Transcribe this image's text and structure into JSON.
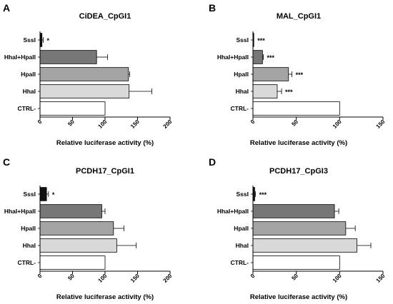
{
  "figure": {
    "panels": [
      {
        "letter": "A",
        "title": "CiDEA_CpGI1",
        "xlabel": "Relative luciferase activity (%)"
      },
      {
        "letter": "B",
        "title": "MAL_CpGI1",
        "xlabel": "Relative luciferase activity (%)"
      },
      {
        "letter": "C",
        "title": "PCDH17_CpGI1",
        "xlabel": "Relative luciferase activity (%)"
      },
      {
        "letter": "D",
        "title": "PCDH17_CpGI3",
        "xlabel": "Relative luciferase activity (%)"
      }
    ]
  },
  "chart_data": [
    {
      "type": "bar",
      "orientation": "horizontal",
      "panel": "A",
      "title": "CiDEA_CpGI1",
      "xlabel": "Relative luciferase activity (%)",
      "xlim": [
        0,
        200
      ],
      "xticks": [
        0,
        50,
        100,
        150,
        200
      ],
      "categories": [
        "SssI",
        "HhaI+HpaII",
        "HpaII",
        "HhaI",
        "CTRL-"
      ],
      "values": [
        3,
        87,
        136,
        137,
        100
      ],
      "errors": [
        2,
        17,
        2,
        35,
        0
      ],
      "significance": [
        "*",
        "",
        "",
        "",
        ""
      ],
      "bar_colors": [
        "#111111",
        "#777777",
        "#a4a4a4",
        "#d9d9d9",
        "#ffffff"
      ]
    },
    {
      "type": "bar",
      "orientation": "horizontal",
      "panel": "B",
      "title": "MAL_CpGI1",
      "xlabel": "Relative luciferase activity (%)",
      "xlim": [
        0,
        150
      ],
      "xticks": [
        0,
        50,
        100,
        150
      ],
      "categories": [
        "SssI",
        "HhaI+HpaII",
        "HpaII",
        "HhaI",
        "CTRL-"
      ],
      "values": [
        1,
        11,
        41,
        28,
        100
      ],
      "errors": [
        0,
        1,
        4,
        5,
        0
      ],
      "significance": [
        "***",
        "***",
        "***",
        "***",
        ""
      ],
      "bar_colors": [
        "#111111",
        "#777777",
        "#a4a4a4",
        "#d9d9d9",
        "#ffffff"
      ]
    },
    {
      "type": "bar",
      "orientation": "horizontal",
      "panel": "C",
      "title": "PCDH17_CpGI1",
      "xlabel": "Relative luciferase activity (%)",
      "xlim": [
        0,
        200
      ],
      "xticks": [
        0,
        50,
        100,
        150,
        200
      ],
      "categories": [
        "SssI",
        "HhaI+HpaII",
        "HpaII",
        "HhaI",
        "CTRL-"
      ],
      "values": [
        10,
        95,
        113,
        118,
        100
      ],
      "errors": [
        3,
        5,
        16,
        30,
        0
      ],
      "significance": [
        "*",
        "",
        "",
        "",
        ""
      ],
      "bar_colors": [
        "#111111",
        "#777777",
        "#a4a4a4",
        "#d9d9d9",
        "#ffffff"
      ]
    },
    {
      "type": "bar",
      "orientation": "horizontal",
      "panel": "D",
      "title": "PCDH17_CpGI3",
      "xlabel": "Relative luciferase activity (%)",
      "xlim": [
        0,
        150
      ],
      "xticks": [
        0,
        50,
        100,
        150
      ],
      "categories": [
        "SssI",
        "HhaI+HpaII",
        "HpaII",
        "HhaI",
        "CTRL-"
      ],
      "values": [
        2,
        94,
        107,
        120,
        100
      ],
      "errors": [
        1,
        5,
        11,
        16,
        0
      ],
      "significance": [
        "***",
        "",
        "",
        "",
        ""
      ],
      "bar_colors": [
        "#111111",
        "#777777",
        "#a4a4a4",
        "#d9d9d9",
        "#ffffff"
      ]
    }
  ]
}
